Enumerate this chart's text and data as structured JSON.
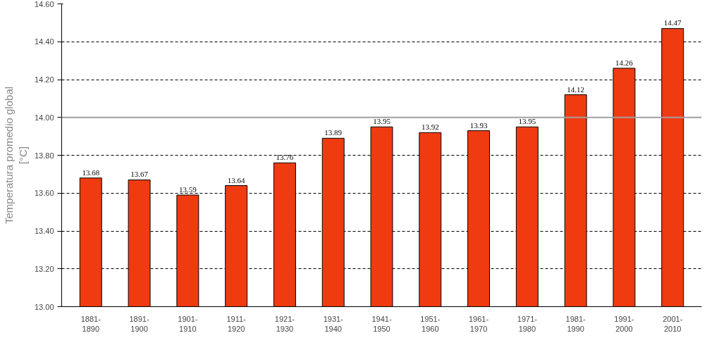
{
  "chart_data": {
    "type": "bar",
    "ylabel": "Temperatura promedio global\n[°C]",
    "categories": [
      "1881-\n1890",
      "1891-\n1900",
      "1901-\n1910",
      "1911-\n1920",
      "1921-\n1930",
      "1931-\n1940",
      "1941-\n1950",
      "1951-\n1960",
      "1961-\n1970",
      "1971-\n1980",
      "1981-\n1990",
      "1991-\n2000",
      "2001-\n2010"
    ],
    "values": [
      13.68,
      13.67,
      13.59,
      13.64,
      13.76,
      13.89,
      13.95,
      13.92,
      13.93,
      13.95,
      14.12,
      14.26,
      14.47
    ],
    "color": "#f03a10",
    "ylim": [
      13.0,
      14.6
    ],
    "yticks": [
      {
        "value": 13.0,
        "label": "13.00"
      },
      {
        "value": 13.2,
        "label": "13.20"
      },
      {
        "value": 13.4,
        "label": "13.40"
      },
      {
        "value": 13.6,
        "label": "13.60"
      },
      {
        "value": 13.8,
        "label": "13.80"
      },
      {
        "value": 14.0,
        "label": "14.00"
      },
      {
        "value": 14.2,
        "label": "14.20"
      },
      {
        "value": 14.4,
        "label": "14.40"
      },
      {
        "value": 14.6,
        "label": "14.60"
      }
    ],
    "grid": "y",
    "data_labels": true,
    "ref_lines": [
      {
        "axis": "y",
        "value": 14.0,
        "color": "#a0a0a0"
      }
    ]
  }
}
